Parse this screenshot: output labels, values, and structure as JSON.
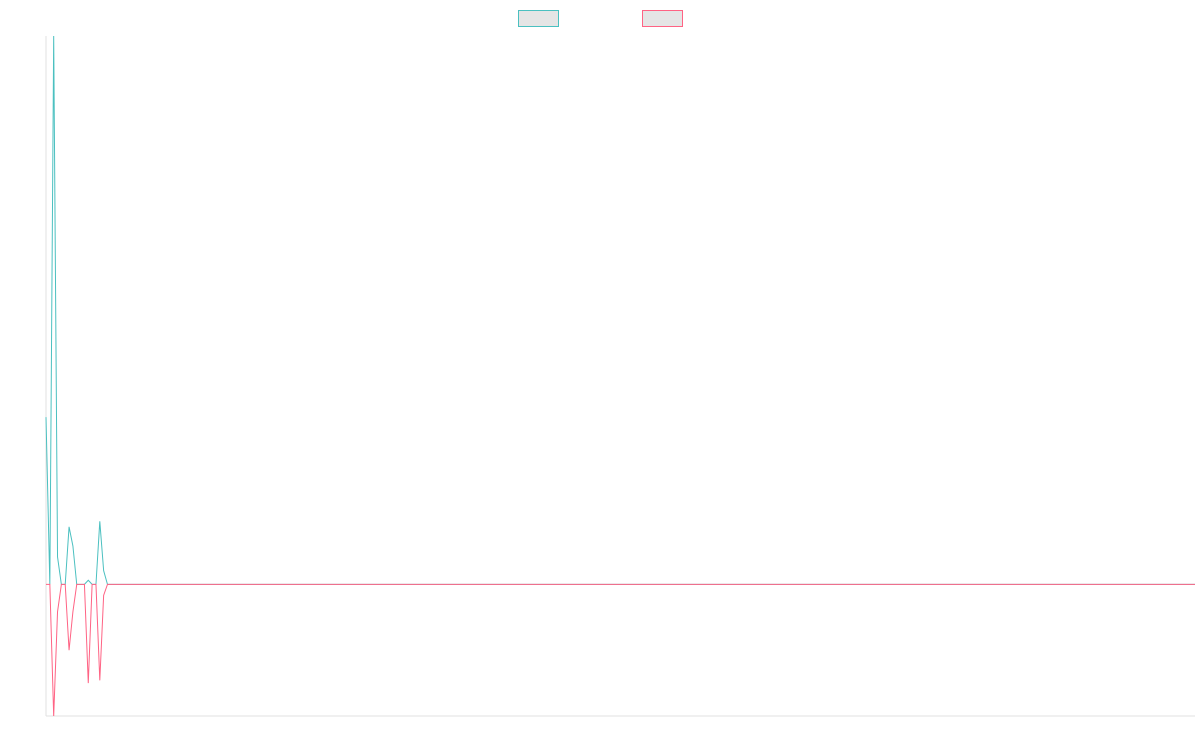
{
  "chart_data": {
    "type": "line",
    "title": "",
    "xlabel": "",
    "ylabel": "",
    "x_count": 300,
    "ylim": [
      -48,
      200
    ],
    "grid": false,
    "legend_position": "top-center",
    "series": [
      {
        "name": "",
        "color": "#4bc0c0",
        "fill": "#e5e5e5",
        "points": [
          {
            "x": 0,
            "y": 61
          },
          {
            "x": 1,
            "y": 0
          },
          {
            "x": 2,
            "y": 200
          },
          {
            "x": 3,
            "y": 10
          },
          {
            "x": 4,
            "y": 0
          },
          {
            "x": 5,
            "y": 0
          },
          {
            "x": 6,
            "y": 21
          },
          {
            "x": 7,
            "y": 14
          },
          {
            "x": 8,
            "y": 0
          },
          {
            "x": 9,
            "y": 0
          },
          {
            "x": 10,
            "y": 0
          },
          {
            "x": 11,
            "y": 1.5
          },
          {
            "x": 12,
            "y": 0
          },
          {
            "x": 13,
            "y": 0
          },
          {
            "x": 14,
            "y": 23
          },
          {
            "x": 15,
            "y": 5
          },
          {
            "x": 16,
            "y": 0
          },
          {
            "x": 299,
            "y": 0
          }
        ]
      },
      {
        "name": "",
        "color": "#ff6384",
        "fill": "#e5e5e5",
        "points": [
          {
            "x": 0,
            "y": 0
          },
          {
            "x": 1,
            "y": 0
          },
          {
            "x": 2,
            "y": -48
          },
          {
            "x": 3,
            "y": -10
          },
          {
            "x": 4,
            "y": 0
          },
          {
            "x": 5,
            "y": 0
          },
          {
            "x": 6,
            "y": -24
          },
          {
            "x": 7,
            "y": -10
          },
          {
            "x": 8,
            "y": 0
          },
          {
            "x": 9,
            "y": 0
          },
          {
            "x": 10,
            "y": 0
          },
          {
            "x": 11,
            "y": -36
          },
          {
            "x": 12,
            "y": 0
          },
          {
            "x": 13,
            "y": 0
          },
          {
            "x": 14,
            "y": -35
          },
          {
            "x": 15,
            "y": -4
          },
          {
            "x": 16,
            "y": 0
          },
          {
            "x": 299,
            "y": 0
          }
        ]
      }
    ]
  }
}
